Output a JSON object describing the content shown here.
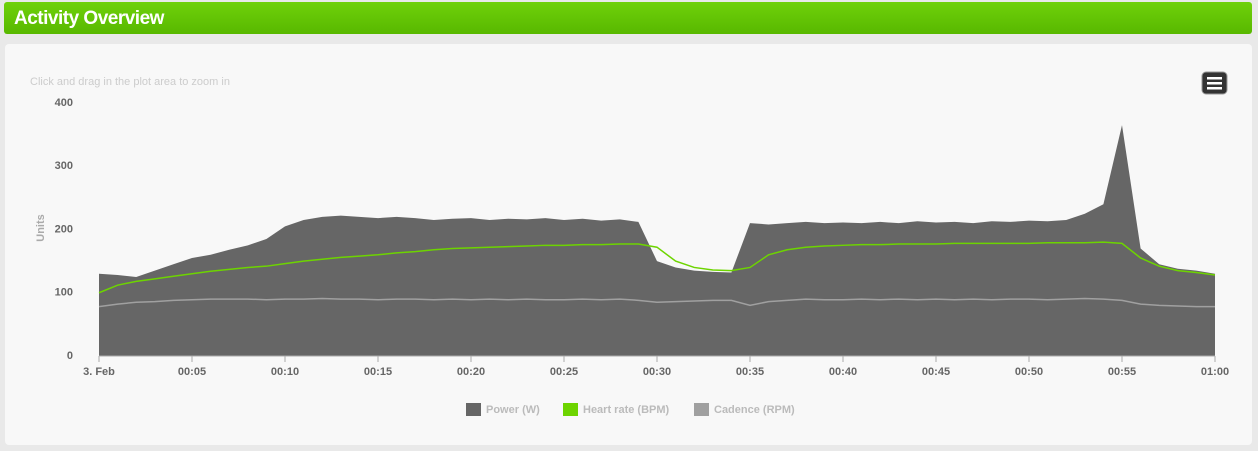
{
  "header": {
    "title": "Activity Overview"
  },
  "chart_data": {
    "type": "line",
    "note": "Click and drag in the plot area to zoom in",
    "y_label": "Units",
    "x": [
      0,
      1,
      2,
      3,
      4,
      5,
      6,
      7,
      8,
      9,
      10,
      11,
      12,
      13,
      14,
      15,
      16,
      17,
      18,
      19,
      20,
      21,
      22,
      23,
      24,
      25,
      26,
      27,
      28,
      29,
      30,
      31,
      32,
      33,
      34,
      35,
      36,
      37,
      38,
      39,
      40,
      41,
      42,
      43,
      44,
      45,
      46,
      47,
      48,
      49,
      50,
      51,
      52,
      53,
      54,
      55,
      56,
      57,
      58,
      59,
      60
    ],
    "series": [
      {
        "name": "Power (W)",
        "type": "area",
        "color": "#666666",
        "values": [
          130,
          128,
          125,
          135,
          145,
          155,
          160,
          168,
          175,
          185,
          205,
          215,
          220,
          222,
          220,
          218,
          220,
          218,
          215,
          217,
          218,
          215,
          217,
          216,
          218,
          215,
          217,
          214,
          216,
          212,
          150,
          140,
          135,
          133,
          132,
          210,
          208,
          210,
          212,
          210,
          211,
          210,
          212,
          210,
          213,
          211,
          212,
          210,
          213,
          212,
          214,
          213,
          215,
          225,
          240,
          365,
          170,
          145,
          138,
          135,
          130
        ]
      },
      {
        "name": "Heart rate (BPM)",
        "type": "line",
        "color": "#6dd400",
        "values": [
          100,
          112,
          118,
          122,
          126,
          130,
          134,
          137,
          140,
          142,
          146,
          150,
          153,
          156,
          158,
          160,
          163,
          165,
          168,
          170,
          171,
          172,
          173,
          174,
          175,
          175,
          176,
          176,
          177,
          177,
          172,
          150,
          140,
          136,
          135,
          140,
          160,
          168,
          172,
          174,
          175,
          176,
          176,
          177,
          177,
          177,
          178,
          178,
          178,
          178,
          178,
          179,
          179,
          179,
          180,
          178,
          155,
          142,
          135,
          132,
          128
        ]
      },
      {
        "name": "Cadence (RPM)",
        "type": "line",
        "color": "#a0a0a0",
        "values": [
          78,
          82,
          85,
          86,
          88,
          89,
          90,
          90,
          90,
          89,
          90,
          90,
          91,
          90,
          90,
          89,
          90,
          90,
          89,
          90,
          89,
          90,
          89,
          90,
          89,
          89,
          90,
          89,
          90,
          88,
          85,
          86,
          87,
          88,
          88,
          80,
          86,
          88,
          90,
          89,
          89,
          90,
          89,
          90,
          89,
          90,
          89,
          90,
          89,
          90,
          90,
          89,
          90,
          91,
          90,
          88,
          82,
          80,
          79,
          78,
          78
        ]
      }
    ],
    "xlim": [
      0,
      60
    ],
    "xticks": [
      {
        "value": 0,
        "label": "3. Feb"
      },
      {
        "value": 5,
        "label": "00:05"
      },
      {
        "value": 10,
        "label": "00:10"
      },
      {
        "value": 15,
        "label": "00:15"
      },
      {
        "value": 20,
        "label": "00:20"
      },
      {
        "value": 25,
        "label": "00:25"
      },
      {
        "value": 30,
        "label": "00:30"
      },
      {
        "value": 35,
        "label": "00:35"
      },
      {
        "value": 40,
        "label": "00:40"
      },
      {
        "value": 45,
        "label": "00:45"
      },
      {
        "value": 50,
        "label": "00:50"
      },
      {
        "value": 55,
        "label": "00:55"
      },
      {
        "value": 60,
        "label": "01:00"
      }
    ],
    "ylim": [
      0,
      400
    ],
    "yticks": [
      0,
      100,
      200,
      300,
      400
    ]
  }
}
